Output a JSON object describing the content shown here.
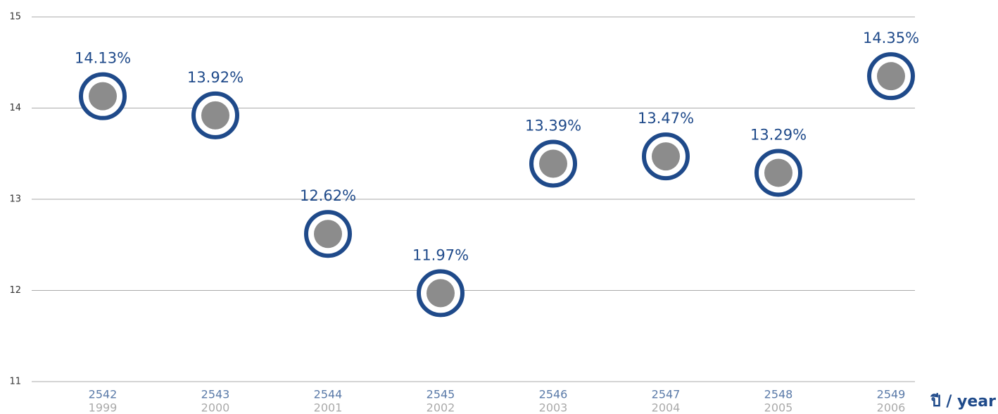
{
  "chart_data": {
    "type": "dot",
    "categories": [
      "2542",
      "2543",
      "2544",
      "2545",
      "2546",
      "2547",
      "2548",
      "2549"
    ],
    "categories_secondary": [
      "1999",
      "2000",
      "2001",
      "2002",
      "2003",
      "2004",
      "2005",
      "2006"
    ],
    "values": [
      14.13,
      13.92,
      12.62,
      11.97,
      13.39,
      13.47,
      13.29,
      14.35
    ],
    "value_labels": [
      "14.13%",
      "13.92%",
      "12.62%",
      "11.97%",
      "13.39%",
      "13.47%",
      "13.29%",
      "14.35%"
    ],
    "x_label": "ปี / year",
    "color": "#1f4a8a",
    "marker_fill": "#8c8c8c",
    "ylim": [
      11,
      15
    ],
    "yticks": [
      11,
      12,
      13,
      14,
      15
    ],
    "grid": true
  }
}
